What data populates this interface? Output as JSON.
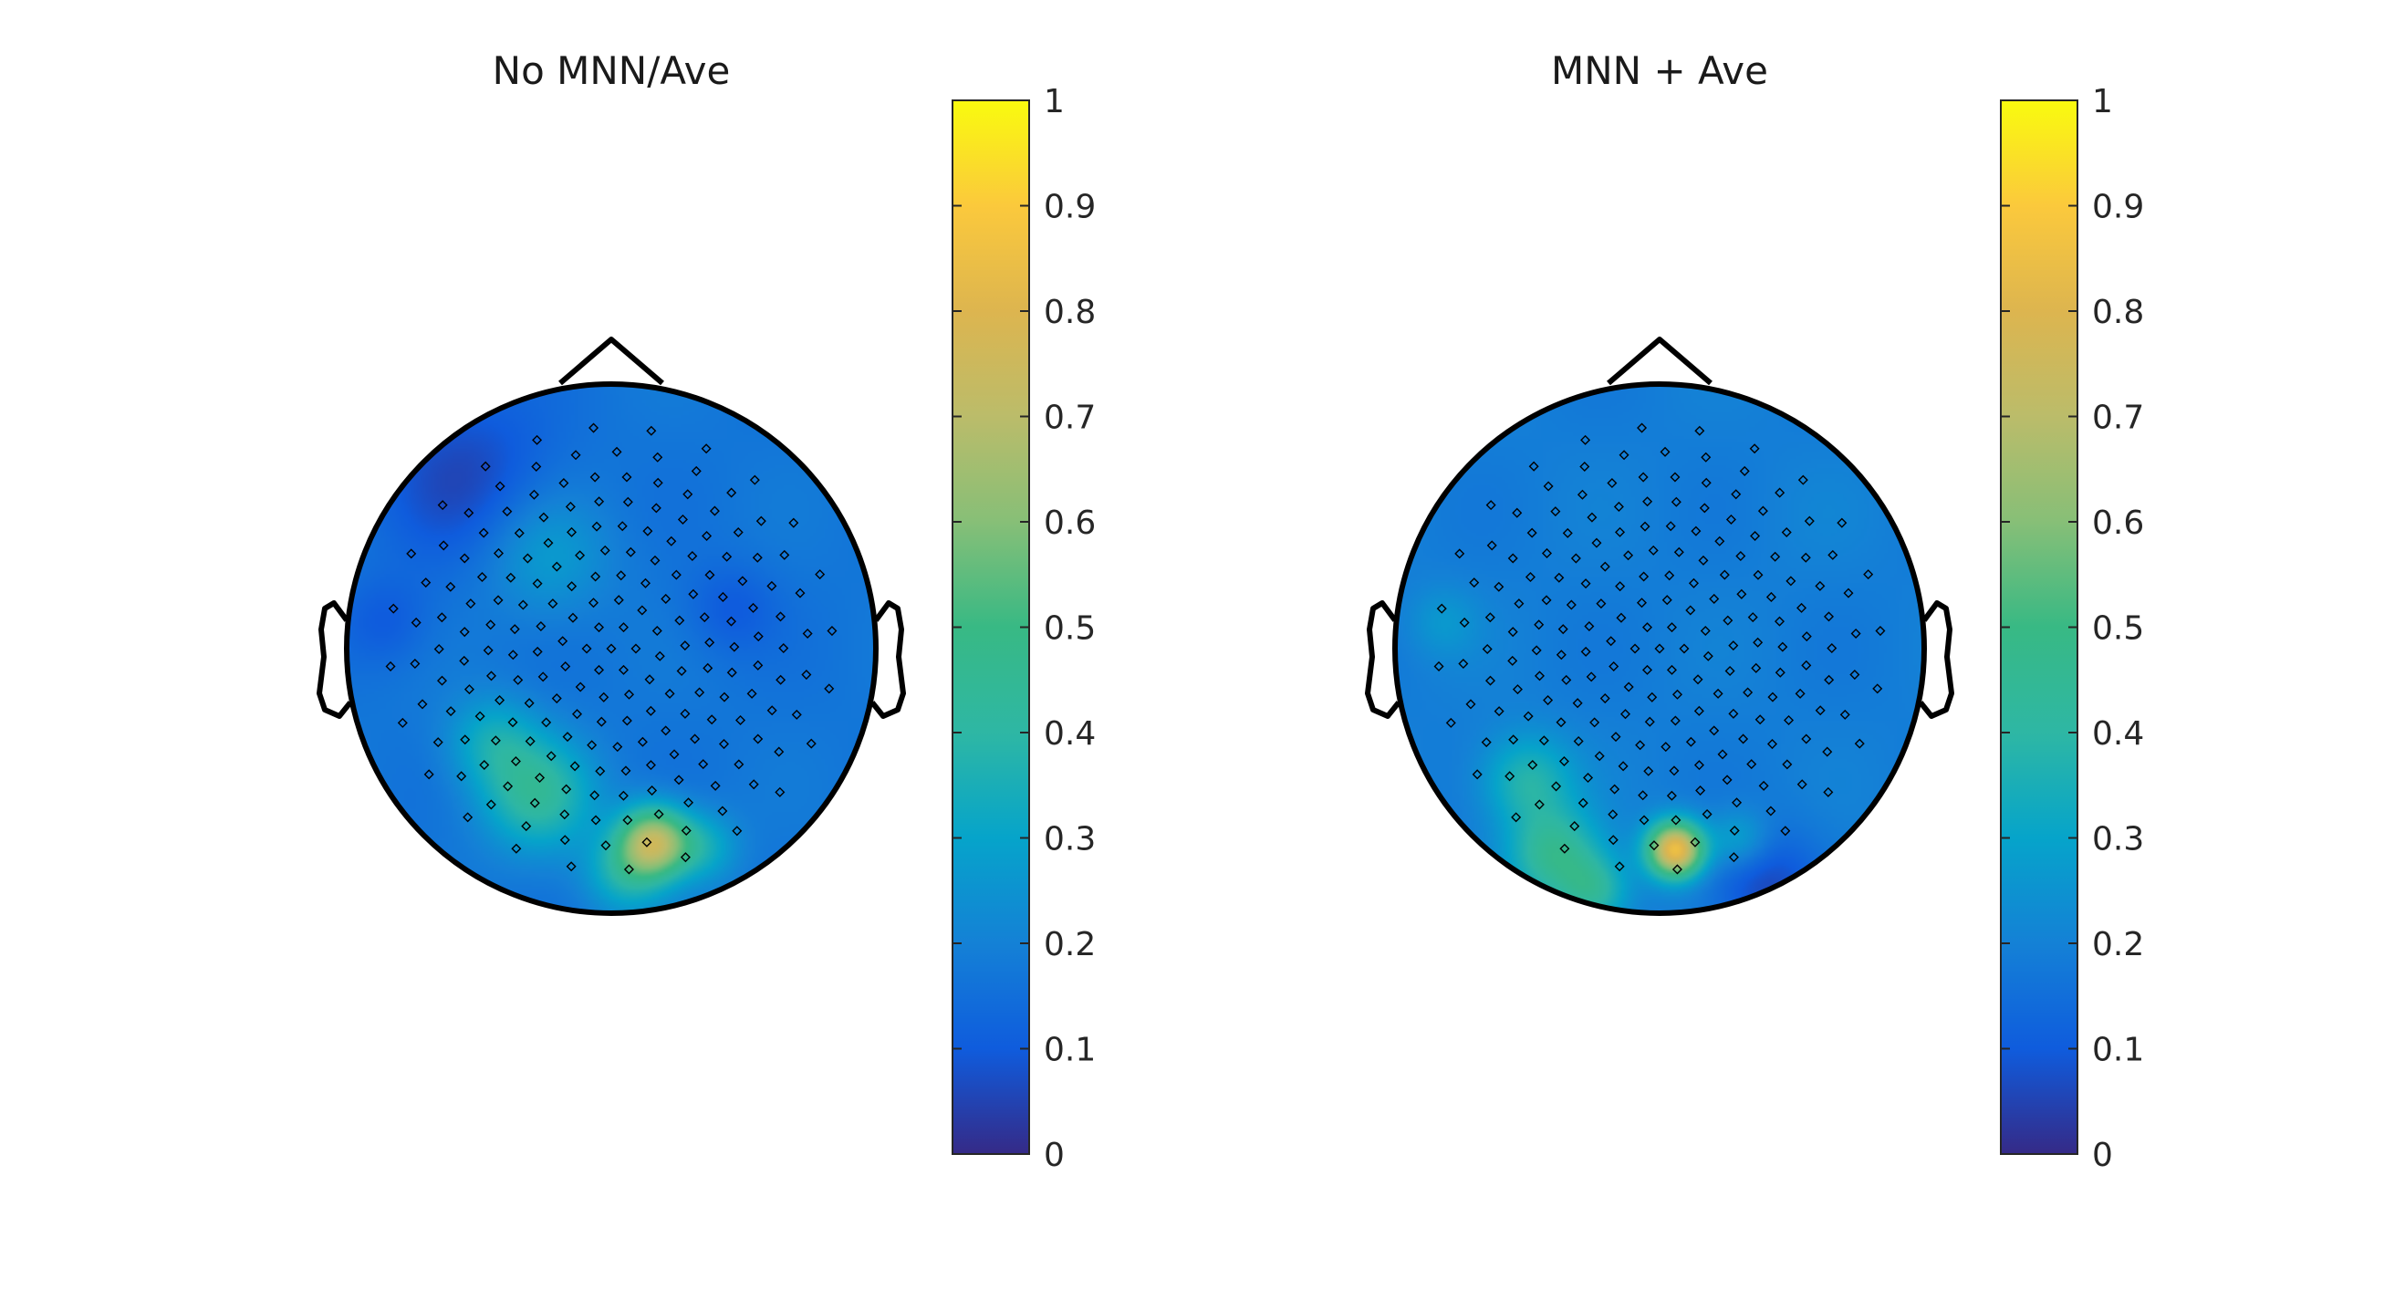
{
  "chart_data": [
    {
      "type": "heatmap",
      "title": "No MNN/Ave",
      "colorbar": {
        "range": [
          0,
          1
        ],
        "ticks": [
          "0",
          "0.1",
          "0.2",
          "0.3",
          "0.4",
          "0.5",
          "0.6",
          "0.7",
          "0.8",
          "0.9",
          "1"
        ],
        "colormap": "parula"
      },
      "baseline_value": 0.17,
      "hotspots": [
        {
          "x": 0.16,
          "y": -0.73,
          "value": 0.68,
          "radius": 0.14
        },
        {
          "x": -0.28,
          "y": -0.55,
          "value": 0.42,
          "radius": 0.22
        },
        {
          "x": -0.45,
          "y": -0.35,
          "value": 0.32,
          "radius": 0.18
        },
        {
          "x": 0.05,
          "y": -0.85,
          "value": 0.35,
          "radius": 0.16
        },
        {
          "x": 0.35,
          "y": -0.75,
          "value": 0.32,
          "radius": 0.14
        },
        {
          "x": -0.25,
          "y": 0.35,
          "value": 0.28,
          "radius": 0.25
        },
        {
          "x": -0.55,
          "y": 0.65,
          "value": 0.06,
          "radius": 0.35
        },
        {
          "x": 0.45,
          "y": 0.15,
          "value": 0.1,
          "radius": 0.18
        },
        {
          "x": -0.85,
          "y": 0.1,
          "value": 0.1,
          "radius": 0.18
        }
      ]
    },
    {
      "type": "heatmap",
      "title": "MNN + Ave",
      "colorbar": {
        "range": [
          0,
          1
        ],
        "ticks": [
          "0",
          "0.1",
          "0.2",
          "0.3",
          "0.4",
          "0.5",
          "0.6",
          "0.7",
          "0.8",
          "0.9",
          "1"
        ],
        "colormap": "parula"
      },
      "baseline_value": 0.19,
      "hotspots": [
        {
          "x": 0.06,
          "y": -0.76,
          "value": 0.86,
          "radius": 0.11
        },
        {
          "x": -0.4,
          "y": -0.78,
          "value": 0.45,
          "radius": 0.18
        },
        {
          "x": -0.5,
          "y": -0.5,
          "value": 0.38,
          "radius": 0.18
        },
        {
          "x": -0.25,
          "y": -0.92,
          "value": 0.4,
          "radius": 0.14
        },
        {
          "x": 0.3,
          "y": -0.72,
          "value": 0.32,
          "radius": 0.12
        },
        {
          "x": 0.4,
          "y": -0.9,
          "value": 0.06,
          "radius": 0.22
        },
        {
          "x": -0.82,
          "y": 0.1,
          "value": 0.26,
          "radius": 0.14
        },
        {
          "x": 0.55,
          "y": 0.5,
          "value": 0.2,
          "radius": 0.25
        }
      ]
    }
  ]
}
